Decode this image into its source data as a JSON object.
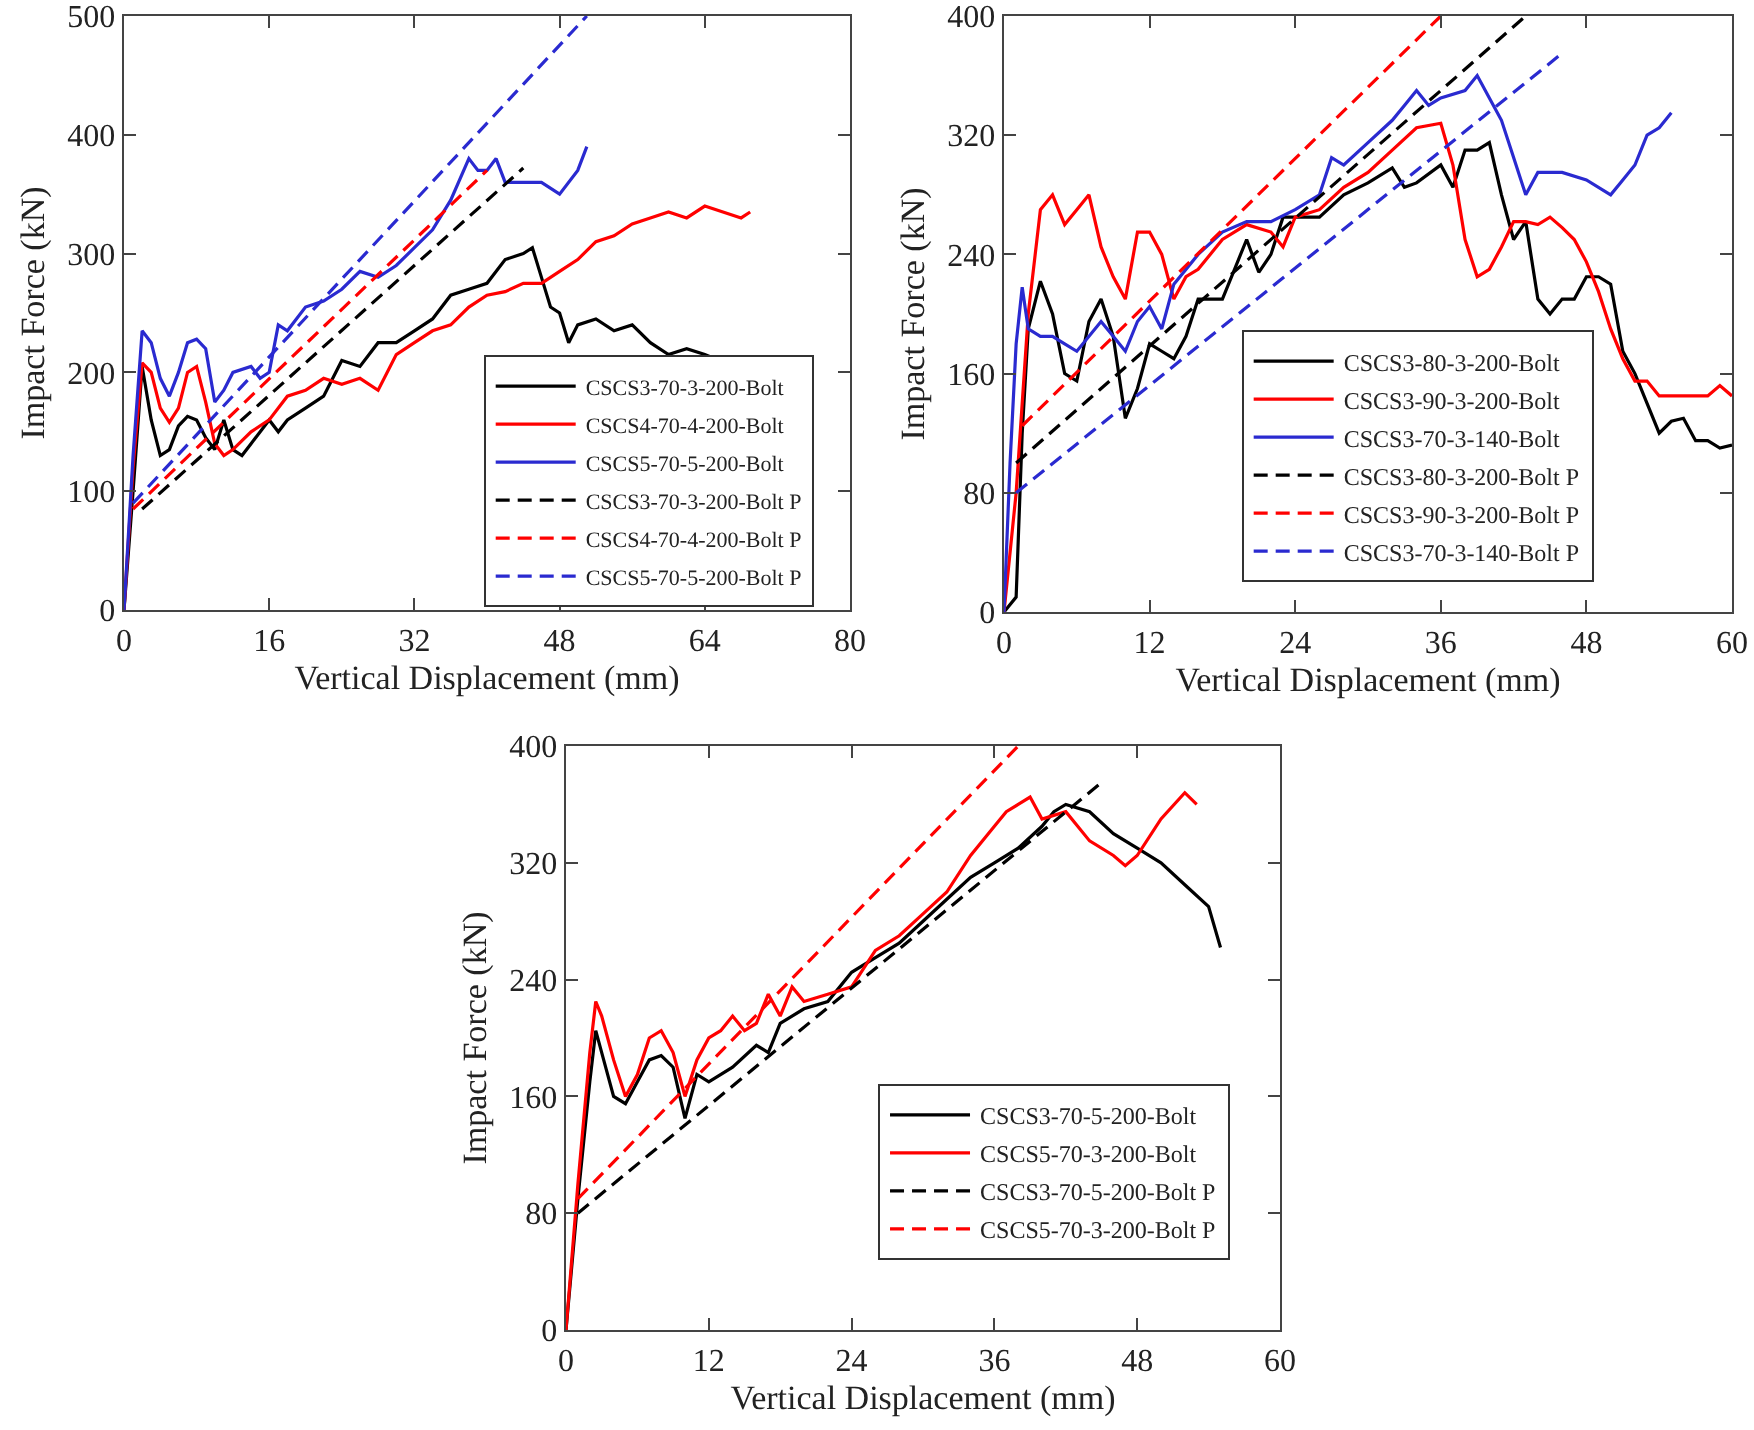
{
  "chart_data": [
    {
      "type": "line",
      "xlabel": "Vertical Displacement (mm)",
      "ylabel": "Impact Force (kN)",
      "xlim": [
        0,
        80
      ],
      "xticks": [
        0,
        16,
        32,
        48,
        64,
        80
      ],
      "ylim": [
        0,
        500
      ],
      "yticks": [
        0,
        100,
        200,
        300,
        400,
        500
      ],
      "grid": false,
      "legend": "bottom right",
      "marker": "none",
      "series": [
        {
          "name": "CSCS3-70-3-200-Bolt",
          "color": "#000000",
          "line_style": "solid",
          "x": [
            0,
            1,
            2,
            3,
            4,
            5,
            6,
            7,
            8,
            9,
            10,
            11,
            12,
            13,
            14,
            16,
            17,
            18,
            20,
            22,
            24,
            26,
            28,
            30,
            32,
            34,
            36,
            38,
            40,
            42,
            44,
            45,
            46,
            47,
            48,
            49,
            50,
            52,
            54,
            56,
            58,
            60,
            62,
            64,
            65
          ],
          "values": [
            0,
            100,
            205,
            160,
            130,
            135,
            155,
            163,
            160,
            145,
            135,
            160,
            135,
            130,
            140,
            160,
            150,
            160,
            170,
            180,
            210,
            205,
            225,
            225,
            235,
            245,
            265,
            270,
            275,
            295,
            300,
            305,
            280,
            255,
            250,
            225,
            240,
            245,
            235,
            240,
            225,
            215,
            220,
            215,
            212
          ]
        },
        {
          "name": "CSCS4-70-4-200-Bolt",
          "color": "#ff0000",
          "line_style": "solid",
          "x": [
            0,
            1,
            2,
            3,
            4,
            5,
            6,
            7,
            8,
            9,
            10,
            11,
            12,
            14,
            16,
            18,
            20,
            22,
            24,
            26,
            28,
            30,
            32,
            34,
            36,
            38,
            40,
            42,
            44,
            46,
            48,
            50,
            52,
            54,
            56,
            58,
            60,
            62,
            64,
            66,
            68,
            69
          ],
          "values": [
            0,
            120,
            208,
            200,
            170,
            158,
            170,
            200,
            205,
            175,
            140,
            130,
            135,
            150,
            160,
            180,
            185,
            195,
            190,
            195,
            185,
            215,
            225,
            235,
            240,
            255,
            265,
            268,
            275,
            275,
            285,
            295,
            310,
            315,
            325,
            330,
            335,
            330,
            340,
            335,
            330,
            335
          ]
        },
        {
          "name": "CSCS5-70-5-200-Bolt",
          "color": "#2a2ad0",
          "line_style": "solid",
          "x": [
            0,
            1,
            2,
            3,
            4,
            5,
            6,
            7,
            8,
            9,
            10,
            11,
            12,
            14,
            15,
            16,
            17,
            18,
            20,
            22,
            24,
            26,
            28,
            30,
            32,
            34,
            36,
            38,
            39,
            40,
            41,
            42,
            44,
            46,
            48,
            50,
            51
          ],
          "values": [
            0,
            130,
            235,
            225,
            195,
            180,
            200,
            225,
            228,
            220,
            175,
            185,
            200,
            205,
            195,
            200,
            240,
            235,
            255,
            260,
            270,
            285,
            280,
            290,
            305,
            320,
            345,
            380,
            370,
            370,
            380,
            360,
            360,
            360,
            350,
            370,
            390
          ]
        },
        {
          "name": "CSCS3-70-3-200-Bolt P",
          "color": "#000000",
          "line_style": "dashed",
          "x": [
            2,
            44
          ],
          "values": [
            85,
            372
          ]
        },
        {
          "name": "CSCS4-70-4-200-Bolt P",
          "color": "#ff0000",
          "line_style": "dashed",
          "x": [
            1,
            40
          ],
          "values": [
            85,
            370
          ]
        },
        {
          "name": "CSCS5-70-5-200-Bolt P",
          "color": "#2a2ad0",
          "line_style": "dashed",
          "x": [
            1,
            51
          ],
          "values": [
            90,
            500
          ]
        }
      ]
    },
    {
      "type": "line",
      "xlabel": "Vertical Displacement (mm)",
      "ylabel": "Impact Force (kN)",
      "xlim": [
        0,
        60
      ],
      "xticks": [
        0,
        12,
        24,
        36,
        48,
        60
      ],
      "ylim": [
        0,
        400
      ],
      "yticks": [
        0,
        80,
        160,
        240,
        320,
        400
      ],
      "grid": false,
      "legend": "bottom right",
      "marker": "none",
      "series": [
        {
          "name": "CSCS3-80-3-200-Bolt",
          "color": "#000000",
          "line_style": "solid",
          "x": [
            0,
            1,
            1.5,
            2,
            3,
            4,
            5,
            6,
            7,
            8,
            9,
            10,
            11,
            12,
            13,
            14,
            15,
            16,
            18,
            19,
            20,
            21,
            22,
            23,
            24,
            26,
            28,
            30,
            32,
            33,
            34,
            36,
            37,
            38,
            39,
            40,
            41,
            42,
            43,
            44,
            45,
            46,
            47,
            48,
            49,
            50,
            51,
            52,
            53,
            54,
            55,
            56,
            57,
            58,
            59,
            60
          ],
          "values": [
            0,
            10,
            120,
            190,
            222,
            200,
            160,
            155,
            195,
            210,
            185,
            130,
            150,
            180,
            175,
            170,
            185,
            210,
            210,
            230,
            250,
            228,
            240,
            265,
            265,
            265,
            280,
            288,
            298,
            285,
            288,
            300,
            285,
            310,
            310,
            315,
            280,
            250,
            262,
            210,
            200,
            210,
            210,
            225,
            225,
            220,
            175,
            160,
            140,
            120,
            128,
            130,
            115,
            115,
            110,
            112
          ]
        },
        {
          "name": "CSCS3-90-3-200-Bolt",
          "color": "#ff0000",
          "line_style": "solid",
          "x": [
            0,
            1,
            2,
            3,
            4,
            5,
            6,
            7,
            8,
            9,
            10,
            11,
            12,
            13,
            14,
            15,
            16,
            18,
            20,
            22,
            23,
            24,
            26,
            28,
            30,
            32,
            34,
            36,
            37,
            38,
            39,
            40,
            41,
            42,
            43,
            44,
            45,
            46,
            47,
            48,
            49,
            50,
            51,
            52,
            53,
            54,
            56,
            58,
            59,
            60
          ],
          "values": [
            0,
            80,
            200,
            270,
            280,
            260,
            270,
            280,
            245,
            225,
            210,
            255,
            255,
            240,
            210,
            225,
            230,
            250,
            260,
            255,
            245,
            265,
            270,
            285,
            295,
            310,
            325,
            328,
            300,
            250,
            225,
            230,
            245,
            262,
            262,
            260,
            265,
            258,
            250,
            235,
            215,
            190,
            170,
            155,
            155,
            145,
            145,
            145,
            152,
            145
          ]
        },
        {
          "name": "CSCS3-70-3-140-Bolt",
          "color": "#2a2ad0",
          "line_style": "solid",
          "x": [
            0,
            0.5,
            1,
            1.5,
            2,
            3,
            4,
            5,
            6,
            8,
            9,
            10,
            11,
            12,
            13,
            14,
            16,
            18,
            20,
            22,
            24,
            26,
            27,
            28,
            30,
            32,
            33,
            34,
            35,
            36,
            38,
            39,
            40,
            41,
            42,
            43,
            44,
            46,
            48,
            50,
            51,
            52,
            53,
            54,
            55
          ],
          "values": [
            0,
            100,
            180,
            218,
            190,
            185,
            185,
            180,
            175,
            195,
            185,
            175,
            195,
            205,
            190,
            220,
            240,
            255,
            262,
            262,
            270,
            280,
            305,
            300,
            315,
            330,
            340,
            350,
            340,
            345,
            350,
            360,
            345,
            330,
            305,
            280,
            295,
            295,
            290,
            280,
            290,
            300,
            320,
            325,
            335
          ]
        },
        {
          "name": "CSCS3-80-3-200-Bolt P",
          "color": "#000000",
          "line_style": "dashed",
          "x": [
            1,
            43
          ],
          "values": [
            100,
            400
          ]
        },
        {
          "name": "CSCS3-90-3-200-Bolt P",
          "color": "#ff0000",
          "line_style": "dashed",
          "x": [
            1.5,
            36
          ],
          "values": [
            125,
            400
          ]
        },
        {
          "name": "CSCS3-70-3-140-Bolt P",
          "color": "#2a2ad0",
          "line_style": "dashed",
          "x": [
            1,
            46
          ],
          "values": [
            80,
            375
          ]
        }
      ]
    },
    {
      "type": "line",
      "xlabel": "Vertical Displacement (mm)",
      "ylabel": "Impact Force (kN)",
      "xlim": [
        0,
        60
      ],
      "xticks": [
        0,
        12,
        24,
        36,
        48,
        60
      ],
      "ylim": [
        0,
        400
      ],
      "yticks": [
        0,
        80,
        160,
        240,
        320,
        400
      ],
      "grid": false,
      "legend": "bottom right",
      "marker": "none",
      "series": [
        {
          "name": "CSCS3-70-5-200-Bolt",
          "color": "#000000",
          "line_style": "solid",
          "x": [
            0,
            1,
            2,
            2.5,
            3,
            4,
            5,
            6,
            7,
            8,
            9,
            10,
            11,
            12,
            14,
            16,
            17,
            18,
            20,
            22,
            24,
            26,
            28,
            30,
            32,
            34,
            36,
            38,
            40,
            41,
            42,
            44,
            46,
            48,
            50,
            52,
            54,
            55
          ],
          "values": [
            0,
            90,
            170,
            205,
            190,
            160,
            155,
            170,
            185,
            188,
            180,
            145,
            175,
            170,
            180,
            195,
            190,
            210,
            220,
            225,
            245,
            255,
            265,
            280,
            295,
            310,
            320,
            330,
            345,
            355,
            360,
            355,
            340,
            330,
            320,
            305,
            290,
            262
          ]
        },
        {
          "name": "CSCS5-70-3-200-Bolt",
          "color": "#ff0000",
          "line_style": "solid",
          "x": [
            0,
            1,
            2,
            2.5,
            3,
            4,
            5,
            6,
            7,
            8,
            9,
            10,
            11,
            12,
            13,
            14,
            15,
            16,
            17,
            18,
            19,
            20,
            22,
            24,
            26,
            28,
            30,
            32,
            34,
            36,
            37,
            38,
            39,
            40,
            42,
            44,
            46,
            47,
            48,
            50,
            52,
            53
          ],
          "values": [
            0,
            100,
            190,
            225,
            215,
            185,
            160,
            175,
            200,
            205,
            190,
            160,
            185,
            200,
            205,
            215,
            205,
            210,
            230,
            215,
            235,
            225,
            230,
            235,
            260,
            270,
            285,
            300,
            325,
            345,
            355,
            360,
            365,
            350,
            355,
            335,
            325,
            318,
            325,
            350,
            368,
            360
          ]
        },
        {
          "name": "CSCS3-70-5-200-Bolt P",
          "color": "#000000",
          "line_style": "dashed",
          "x": [
            1,
            45
          ],
          "values": [
            80,
            375
          ]
        },
        {
          "name": "CSCS5-70-3-200-Bolt P",
          "color": "#ff0000",
          "line_style": "dashed",
          "x": [
            1,
            38
          ],
          "values": [
            90,
            400
          ]
        }
      ]
    }
  ]
}
